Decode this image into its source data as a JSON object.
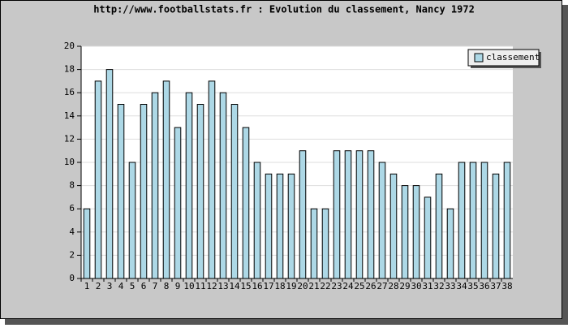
{
  "chart_data": {
    "type": "bar",
    "title": "http://www.footballstats.fr : Evolution du classement, Nancy 1972",
    "categories": [
      "1",
      "2",
      "3",
      "4",
      "5",
      "6",
      "7",
      "8",
      "9",
      "10",
      "11",
      "12",
      "13",
      "14",
      "15",
      "16",
      "17",
      "18",
      "19",
      "20",
      "21",
      "22",
      "23",
      "24",
      "25",
      "26",
      "27",
      "28",
      "29",
      "30",
      "31",
      "32",
      "33",
      "34",
      "35",
      "36",
      "37",
      "38"
    ],
    "series": [
      {
        "name": "classement",
        "color": "#add8e6",
        "values": [
          6,
          17,
          18,
          15,
          10,
          15,
          16,
          17,
          13,
          16,
          15,
          17,
          16,
          15,
          13,
          10,
          9,
          9,
          9,
          11,
          6,
          6,
          11,
          11,
          11,
          11,
          10,
          9,
          8,
          8,
          7,
          9,
          6,
          10,
          10,
          10,
          9,
          10
        ]
      }
    ],
    "ylim": [
      0,
      20
    ],
    "yticks": [
      0,
      2,
      4,
      6,
      8,
      10,
      12,
      14,
      16,
      18,
      20
    ],
    "grid": true,
    "legend": "top-right"
  }
}
